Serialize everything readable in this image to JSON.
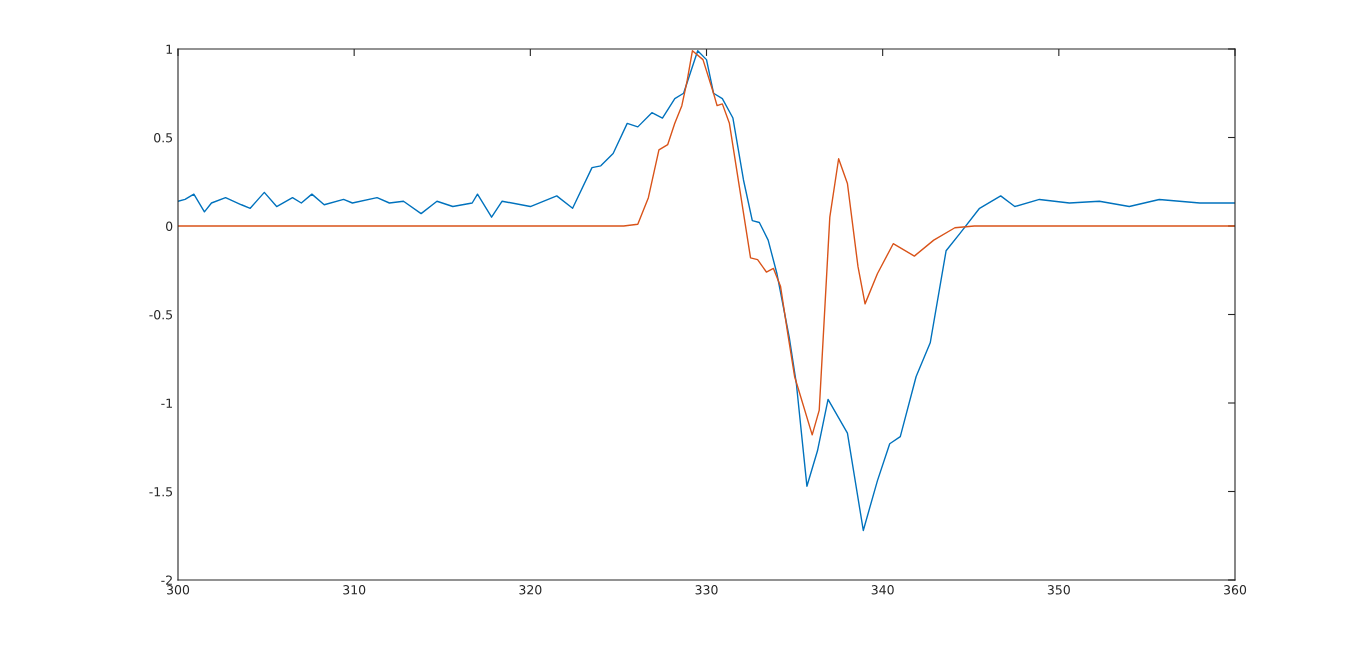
{
  "chart_data": {
    "type": "line",
    "xlim": [
      300,
      360
    ],
    "ylim": [
      -2,
      1
    ],
    "xticks": [
      300,
      310,
      320,
      330,
      340,
      350,
      360
    ],
    "yticks": [
      -2,
      -1.5,
      -1,
      -0.5,
      0,
      0.5,
      1
    ],
    "grid": false,
    "legend": false,
    "marker": "none",
    "line_style": "solid",
    "series": [
      {
        "color": "#0072bd",
        "x": [
          300.0,
          300.4,
          300.9,
          301.5,
          301.9,
          302.7,
          303.6,
          304.1,
          304.9,
          305.6,
          306.5,
          307.0,
          307.6,
          308.3,
          309.4,
          309.9,
          311.3,
          312.0,
          312.8,
          313.8,
          314.7,
          315.6,
          316.7,
          317.0,
          317.8,
          318.4,
          320.0,
          321.5,
          322.4,
          323.5,
          324.0,
          324.7,
          325.5,
          326.1,
          326.9,
          327.5,
          328.2,
          328.7,
          329.5,
          330.0,
          330.4,
          330.9,
          331.5,
          332.1,
          332.6,
          333.0,
          333.5,
          334.0,
          334.7,
          335.1,
          335.7,
          336.3,
          336.9,
          338.0,
          338.9,
          339.7,
          340.4,
          341.0,
          341.9,
          342.7,
          343.6,
          344.4,
          345.5,
          346.7,
          347.5,
          348.9,
          350.6,
          352.3,
          354.0,
          355.7,
          358.0,
          360.0
        ],
        "values": [
          0.14,
          0.15,
          0.18,
          0.08,
          0.13,
          0.16,
          0.12,
          0.1,
          0.19,
          0.11,
          0.16,
          0.13,
          0.18,
          0.12,
          0.15,
          0.13,
          0.16,
          0.13,
          0.14,
          0.07,
          0.14,
          0.11,
          0.13,
          0.18,
          0.05,
          0.14,
          0.11,
          0.17,
          0.1,
          0.33,
          0.34,
          0.41,
          0.58,
          0.56,
          0.64,
          0.61,
          0.72,
          0.75,
          0.99,
          0.94,
          0.75,
          0.72,
          0.61,
          0.26,
          0.03,
          0.02,
          -0.08,
          -0.27,
          -0.63,
          -0.89,
          -1.47,
          -1.27,
          -0.98,
          -1.17,
          -1.72,
          -1.44,
          -1.23,
          -1.19,
          -0.85,
          -0.66,
          -0.14,
          -0.04,
          0.1,
          0.17,
          0.11,
          0.15,
          0.13,
          0.14,
          0.11,
          0.15,
          0.13,
          0.13
        ]
      },
      {
        "color": "#d95319",
        "x": [
          300.0,
          325.3,
          326.1,
          326.7,
          327.3,
          327.8,
          328.2,
          328.6,
          328.9,
          329.2,
          329.8,
          330.4,
          330.6,
          330.9,
          331.3,
          331.9,
          332.5,
          332.9,
          333.4,
          333.8,
          334.2,
          334.6,
          335.0,
          336.0,
          336.4,
          337.0,
          337.5,
          338.0,
          338.6,
          339.0,
          339.7,
          340.6,
          341.8,
          342.9,
          344.1,
          345.2,
          360.0
        ],
        "values": [
          0,
          0,
          0.01,
          0.16,
          0.43,
          0.46,
          0.58,
          0.68,
          0.82,
          0.99,
          0.94,
          0.75,
          0.68,
          0.69,
          0.58,
          0.2,
          -0.18,
          -0.19,
          -0.26,
          -0.24,
          -0.34,
          -0.6,
          -0.85,
          -1.18,
          -1.04,
          0.05,
          0.38,
          0.24,
          -0.23,
          -0.44,
          -0.27,
          -0.1,
          -0.17,
          -0.08,
          -0.01,
          0,
          0
        ]
      }
    ]
  }
}
